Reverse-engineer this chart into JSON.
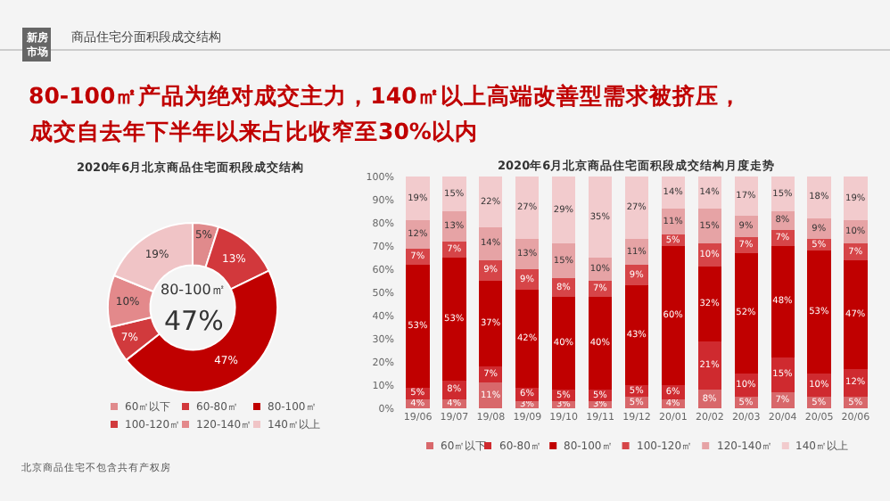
{
  "chart_data": [
    {
      "type": "donut",
      "title": "2020年6月北京商品住宅面积段成交结构",
      "annotations": [
        "新房市场",
        "商品住宅分面积段成交结构",
        "80-100㎡产品为绝对成交主力，140㎡以上高端改善型需求被挤压，",
        "成交自去年下半年以来占比收窄至30%以内",
        "80-100㎡",
        "47%",
        "北京商品住宅不包含共有产权房"
      ],
      "categories": [
        "60㎡以下",
        "60-80㎡",
        "80-100㎡",
        "100-120㎡",
        "120-140㎡",
        "140㎡以上"
      ],
      "values": [
        5,
        13,
        47,
        7,
        10,
        19
      ],
      "value_labels": [
        "5%",
        "13%",
        "47%",
        "7%",
        "10%",
        "19%"
      ],
      "colors": [
        "#e08a8c",
        "#d2383c",
        "#c00000",
        "#d13a3d",
        "#e3898b",
        "#f0c4c6"
      ],
      "legend": "bottom"
    },
    {
      "type": "bar",
      "stacked": true,
      "title": "2020年6月北京商品住宅面积段成交结构月度走势",
      "categories": [
        "19/06",
        "19/07",
        "19/08",
        "19/09",
        "19/10",
        "19/11",
        "19/12",
        "20/01",
        "20/02",
        "20/03",
        "20/04",
        "20/05",
        "20/06"
      ],
      "ylim": [
        0,
        100
      ],
      "yticks": [
        {
          "value": 0,
          "label": "0%"
        },
        {
          "value": 10,
          "label": "10%"
        },
        {
          "value": 20,
          "label": "20%"
        },
        {
          "value": 30,
          "label": "30%"
        },
        {
          "value": 40,
          "label": "40%"
        },
        {
          "value": 50,
          "label": "50%"
        },
        {
          "value": 60,
          "label": "60%"
        },
        {
          "value": 70,
          "label": "70%"
        },
        {
          "value": 80,
          "label": "80%"
        },
        {
          "value": 90,
          "label": "90%"
        },
        {
          "value": 100,
          "label": "100%"
        }
      ],
      "series": [
        {
          "name": "60㎡以下",
          "color": "#d8686b",
          "values": [
            4,
            4,
            11,
            3,
            3,
            3,
            5,
            4,
            8,
            5,
            7,
            5,
            5
          ],
          "value_labels": [
            "4%",
            "4%",
            "11%",
            "3%",
            "3%",
            "3%",
            "5%",
            "4%",
            "8%",
            "5%",
            "7%",
            "5%",
            "5%"
          ]
        },
        {
          "name": "60-80㎡",
          "color": "#cf2a2f",
          "values": [
            5,
            8,
            7,
            6,
            5,
            5,
            5,
            6,
            21,
            10,
            15,
            10,
            12
          ],
          "value_labels": [
            "5%",
            "8%",
            "7%",
            "6%",
            "5%",
            "5%",
            "5%",
            "6%",
            "21%",
            "10%",
            "15%",
            "10%",
            "12%"
          ]
        },
        {
          "name": "80-100㎡",
          "color": "#c00000",
          "values": [
            53,
            53,
            37,
            42,
            40,
            40,
            43,
            60,
            32,
            52,
            48,
            53,
            47
          ],
          "value_labels": [
            "53%",
            "53%",
            "37%",
            "42%",
            "40%",
            "40%",
            "43%",
            "60%",
            "32%",
            "52%",
            "48%",
            "53%",
            "47%"
          ]
        },
        {
          "name": "100-120㎡",
          "color": "#d64548",
          "values": [
            7,
            7,
            9,
            9,
            8,
            7,
            9,
            5,
            10,
            7,
            7,
            5,
            7
          ],
          "value_labels": [
            "7%",
            "7%",
            "9%",
            "9%",
            "8%",
            "7%",
            "9%",
            "5%",
            "10%",
            "7%",
            "7%",
            "5%",
            "7%"
          ]
        },
        {
          "name": "120-140㎡",
          "color": "#e6a3a5",
          "values": [
            12,
            13,
            14,
            13,
            15,
            10,
            11,
            11,
            15,
            9,
            8,
            9,
            10
          ],
          "value_labels": [
            "12%",
            "13%",
            "14%",
            "13%",
            "15%",
            "10%",
            "11%",
            "11%",
            "15%",
            "9%",
            "8%",
            "9%",
            "10%"
          ]
        },
        {
          "name": "140㎡以上",
          "color": "#f2cbcd",
          "values": [
            19,
            15,
            22,
            27,
            29,
            35,
            27,
            14,
            14,
            17,
            15,
            18,
            19
          ],
          "value_labels": [
            "19%",
            "15%",
            "22%",
            "27%",
            "29%",
            "35%",
            "27%",
            "14%",
            "14%",
            "17%",
            "15%",
            "18%",
            "19%"
          ]
        }
      ],
      "grid": false,
      "legend": "bottom"
    }
  ]
}
